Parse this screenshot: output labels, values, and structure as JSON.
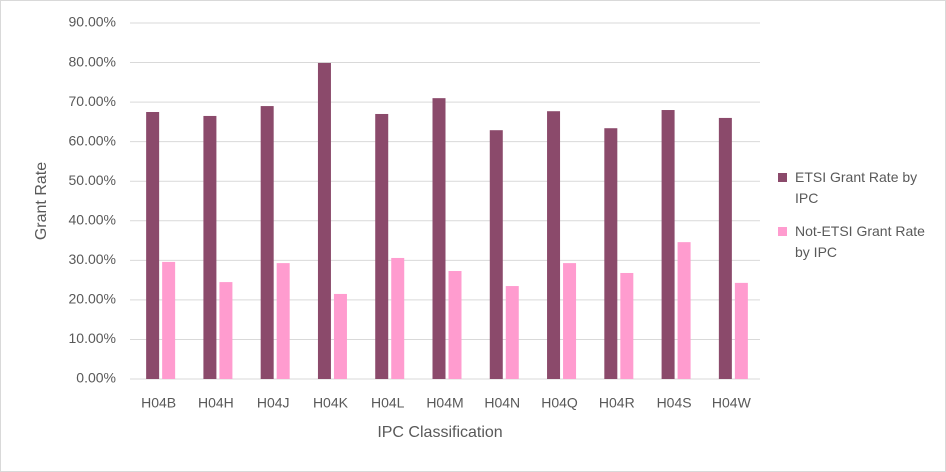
{
  "chart_data": {
    "type": "bar",
    "x_label": "IPC Classification",
    "y_label": "Grant Rate",
    "categories": [
      "H04B",
      "H04H",
      "H04J",
      "H04K",
      "H04L",
      "H04M",
      "H04N",
      "H04Q",
      "H04R",
      "H04S",
      "H04W"
    ],
    "series": [
      {
        "name": "ETSI Grant Rate by IPC",
        "color": "#8b4a6b",
        "values": [
          67.5,
          66.5,
          69.0,
          79.9,
          67.0,
          71.0,
          62.9,
          67.7,
          63.4,
          68.0,
          66.0
        ]
      },
      {
        "name": "Not-ETSI Grant Rate by IPC",
        "color": "#ff9ccf",
        "values": [
          29.6,
          24.5,
          29.3,
          21.5,
          30.6,
          27.3,
          23.5,
          29.3,
          26.8,
          34.6,
          24.3
        ]
      }
    ],
    "ylim": [
      0,
      90
    ],
    "yticks": [
      {
        "value": 0,
        "label": "0.00%"
      },
      {
        "value": 10,
        "label": "10.00%"
      },
      {
        "value": 20,
        "label": "20.00%"
      },
      {
        "value": 30,
        "label": "30.00%"
      },
      {
        "value": 40,
        "label": "40.00%"
      },
      {
        "value": 50,
        "label": "50.00%"
      },
      {
        "value": 60,
        "label": "60.00%"
      },
      {
        "value": 70,
        "label": "70.00%"
      },
      {
        "value": 80,
        "label": "80.00%"
      },
      {
        "value": 90,
        "label": "90.00%"
      }
    ],
    "grid": true,
    "legend": "right"
  }
}
